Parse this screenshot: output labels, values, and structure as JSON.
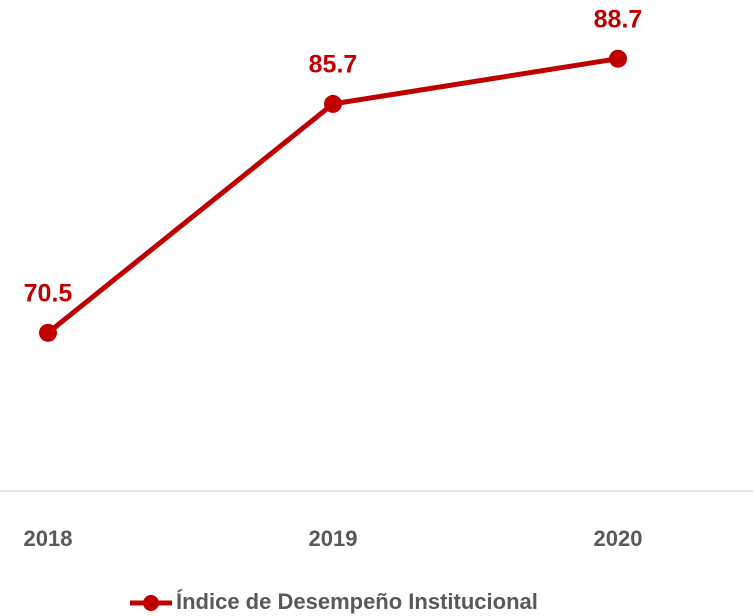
{
  "chart_data": {
    "type": "line",
    "categories": [
      "2018",
      "2019",
      "2020"
    ],
    "series": [
      {
        "name": "Índice de Desempeño Institucional",
        "color": "#c00000",
        "values": [
          70.5,
          85.7,
          88.7
        ]
      }
    ],
    "ylim": [
      60,
      92
    ],
    "grid": false,
    "legend": "bottom"
  }
}
